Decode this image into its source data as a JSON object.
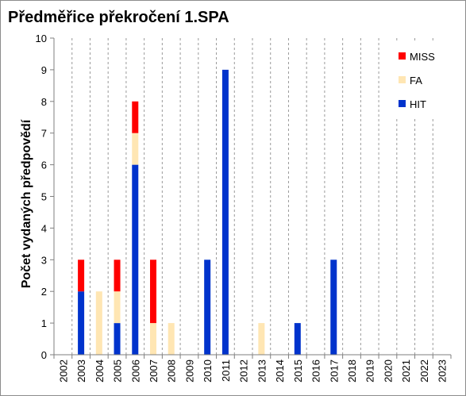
{
  "chart_data": {
    "type": "bar",
    "stacked": true,
    "title": "Předměřice překročení 1.SPA",
    "xlabel": "",
    "ylabel": "Počet vydaných předpovědí",
    "ylim": [
      0,
      10
    ],
    "yticks": [
      "0",
      "1",
      "2",
      "3",
      "4",
      "5",
      "6",
      "7",
      "8",
      "9",
      "10"
    ],
    "categories": [
      "2002",
      "2003",
      "2004",
      "2005",
      "2006",
      "2007",
      "2008",
      "2009",
      "2010",
      "2011",
      "2012",
      "2013",
      "2014",
      "2015",
      "2016",
      "2017",
      "2018",
      "2019",
      "2020",
      "2021",
      "2022",
      "2023"
    ],
    "series": [
      {
        "name": "HIT",
        "color": "#0033cc",
        "values": [
          0,
          2,
          0,
          1,
          6,
          0,
          0,
          0,
          3,
          9,
          0,
          0,
          0,
          1,
          0,
          3,
          0,
          0,
          0,
          0,
          0,
          0
        ]
      },
      {
        "name": "FA",
        "color": "#ffe6b3",
        "values": [
          0,
          0,
          2,
          1,
          1,
          1,
          1,
          0,
          0,
          0,
          0,
          1,
          0,
          0,
          0,
          0,
          0,
          0,
          0,
          0,
          0,
          0
        ]
      },
      {
        "name": "MISS",
        "color": "#ff0000",
        "values": [
          0,
          1,
          0,
          1,
          1,
          2,
          0,
          0,
          0,
          0,
          0,
          0,
          0,
          0,
          0,
          0,
          0,
          0,
          0,
          0,
          0,
          0
        ]
      }
    ],
    "legend": {
      "position": "top-right",
      "order": [
        "MISS",
        "FA",
        "HIT"
      ]
    },
    "grid": {
      "vertical": "dashed",
      "horizontal": "none"
    }
  }
}
